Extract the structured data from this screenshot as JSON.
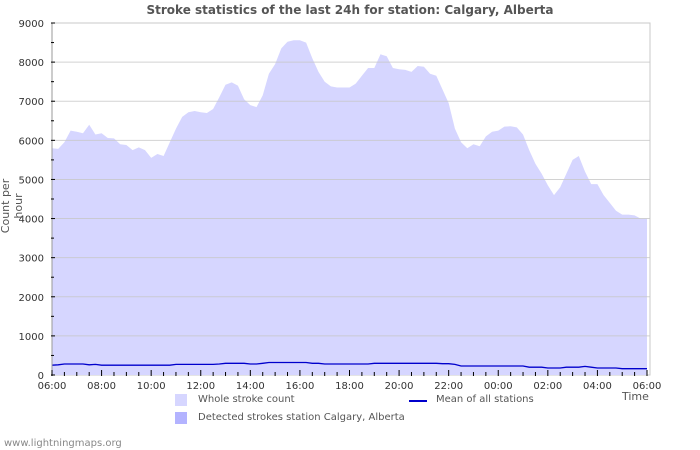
{
  "title": "Stroke statistics of the last 24h for station: Calgary, Alberta",
  "footer": "www.lightningmaps.org",
  "colors": {
    "whole_fill": "#d6d6ff",
    "detected_fill": "#b3b3ff",
    "mean_line": "#0000cc",
    "grid": "#c8c8c8",
    "axis_text": "#333333"
  },
  "legend": {
    "whole": "Whole stroke count",
    "detected": "Detected strokes station Calgary, Alberta",
    "mean": "Mean of all stations"
  },
  "chart_data": {
    "type": "area",
    "title": "Stroke statistics of the last 24h for station: Calgary, Alberta",
    "xlabel": "Time",
    "ylabel": "Count per hour",
    "ylim": [
      0,
      9000
    ],
    "yticks": [
      0,
      1000,
      2000,
      3000,
      4000,
      5000,
      6000,
      7000,
      8000,
      9000
    ],
    "xticks": [
      "06:00",
      "08:00",
      "10:00",
      "12:00",
      "14:00",
      "16:00",
      "18:00",
      "20:00",
      "22:00",
      "00:00",
      "02:00",
      "04:00",
      "06:00"
    ],
    "grid": true,
    "legend_position": "bottom",
    "x_hours": [
      0,
      0.25,
      0.5,
      0.75,
      1.0,
      1.25,
      1.5,
      1.75,
      2.0,
      2.25,
      2.5,
      2.75,
      3.0,
      3.25,
      3.5,
      3.75,
      4.0,
      4.25,
      4.5,
      4.75,
      5.0,
      5.25,
      5.5,
      5.75,
      6.0,
      6.25,
      6.5,
      6.75,
      7.0,
      7.25,
      7.5,
      7.75,
      8.0,
      8.25,
      8.5,
      8.75,
      9.0,
      9.25,
      9.5,
      9.75,
      10.0,
      10.25,
      10.5,
      10.75,
      11.0,
      11.25,
      11.5,
      11.75,
      12.0,
      12.25,
      12.5,
      12.75,
      13.0,
      13.25,
      13.5,
      13.75,
      14.0,
      14.25,
      14.5,
      14.75,
      15.0,
      15.25,
      15.5,
      15.75,
      16.0,
      16.25,
      16.5,
      16.75,
      17.0,
      17.25,
      17.5,
      17.75,
      18.0,
      18.25,
      18.5,
      18.75,
      19.0,
      19.25,
      19.5,
      19.75,
      20.0,
      20.25,
      20.5,
      20.75,
      21.0,
      21.25,
      21.5,
      21.75,
      22.0,
      22.25,
      22.5,
      22.75,
      23.0,
      23.25,
      23.5,
      23.75,
      24.0
    ],
    "series": [
      {
        "name": "Whole stroke count",
        "values": [
          5800,
          5780,
          5950,
          6250,
          6220,
          6180,
          6400,
          6150,
          6180,
          6060,
          6050,
          5900,
          5880,
          5750,
          5820,
          5750,
          5550,
          5650,
          5600,
          5950,
          6300,
          6600,
          6720,
          6750,
          6720,
          6700,
          6800,
          7100,
          7420,
          7480,
          7400,
          7050,
          6900,
          6850,
          7150,
          7700,
          7950,
          8350,
          8520,
          8560,
          8560,
          8500,
          8100,
          7750,
          7500,
          7380,
          7350,
          7350,
          7350,
          7450,
          7650,
          7850,
          7850,
          8200,
          8150,
          7850,
          7820,
          7800,
          7750,
          7900,
          7880,
          7700,
          7650,
          7300,
          6950,
          6300,
          5950,
          5800,
          5900,
          5850,
          6100,
          6220,
          6250,
          6350,
          6360,
          6330,
          6150,
          5750,
          5400,
          5150,
          4850,
          4600,
          4800,
          5150,
          5500,
          5600,
          5200,
          4880,
          4880,
          4600,
          4400,
          4200,
          4100,
          4100,
          4080,
          4000,
          4000
        ]
      },
      {
        "name": "Detected strokes station Calgary, Alberta",
        "values": []
      },
      {
        "name": "Mean of all stations",
        "values": [
          250,
          260,
          280,
          280,
          280,
          280,
          260,
          270,
          250,
          250,
          250,
          250,
          250,
          250,
          250,
          250,
          250,
          250,
          250,
          250,
          270,
          270,
          270,
          270,
          270,
          270,
          270,
          280,
          300,
          300,
          300,
          300,
          280,
          280,
          300,
          320,
          320,
          320,
          320,
          320,
          320,
          320,
          300,
          300,
          280,
          280,
          280,
          280,
          280,
          280,
          280,
          280,
          300,
          300,
          300,
          300,
          300,
          300,
          300,
          300,
          300,
          300,
          300,
          290,
          290,
          270,
          230,
          230,
          230,
          230,
          230,
          230,
          230,
          230,
          230,
          230,
          230,
          200,
          200,
          200,
          180,
          180,
          180,
          200,
          200,
          200,
          220,
          200,
          180,
          180,
          180,
          180,
          160,
          160,
          160,
          160,
          160
        ]
      }
    ]
  }
}
